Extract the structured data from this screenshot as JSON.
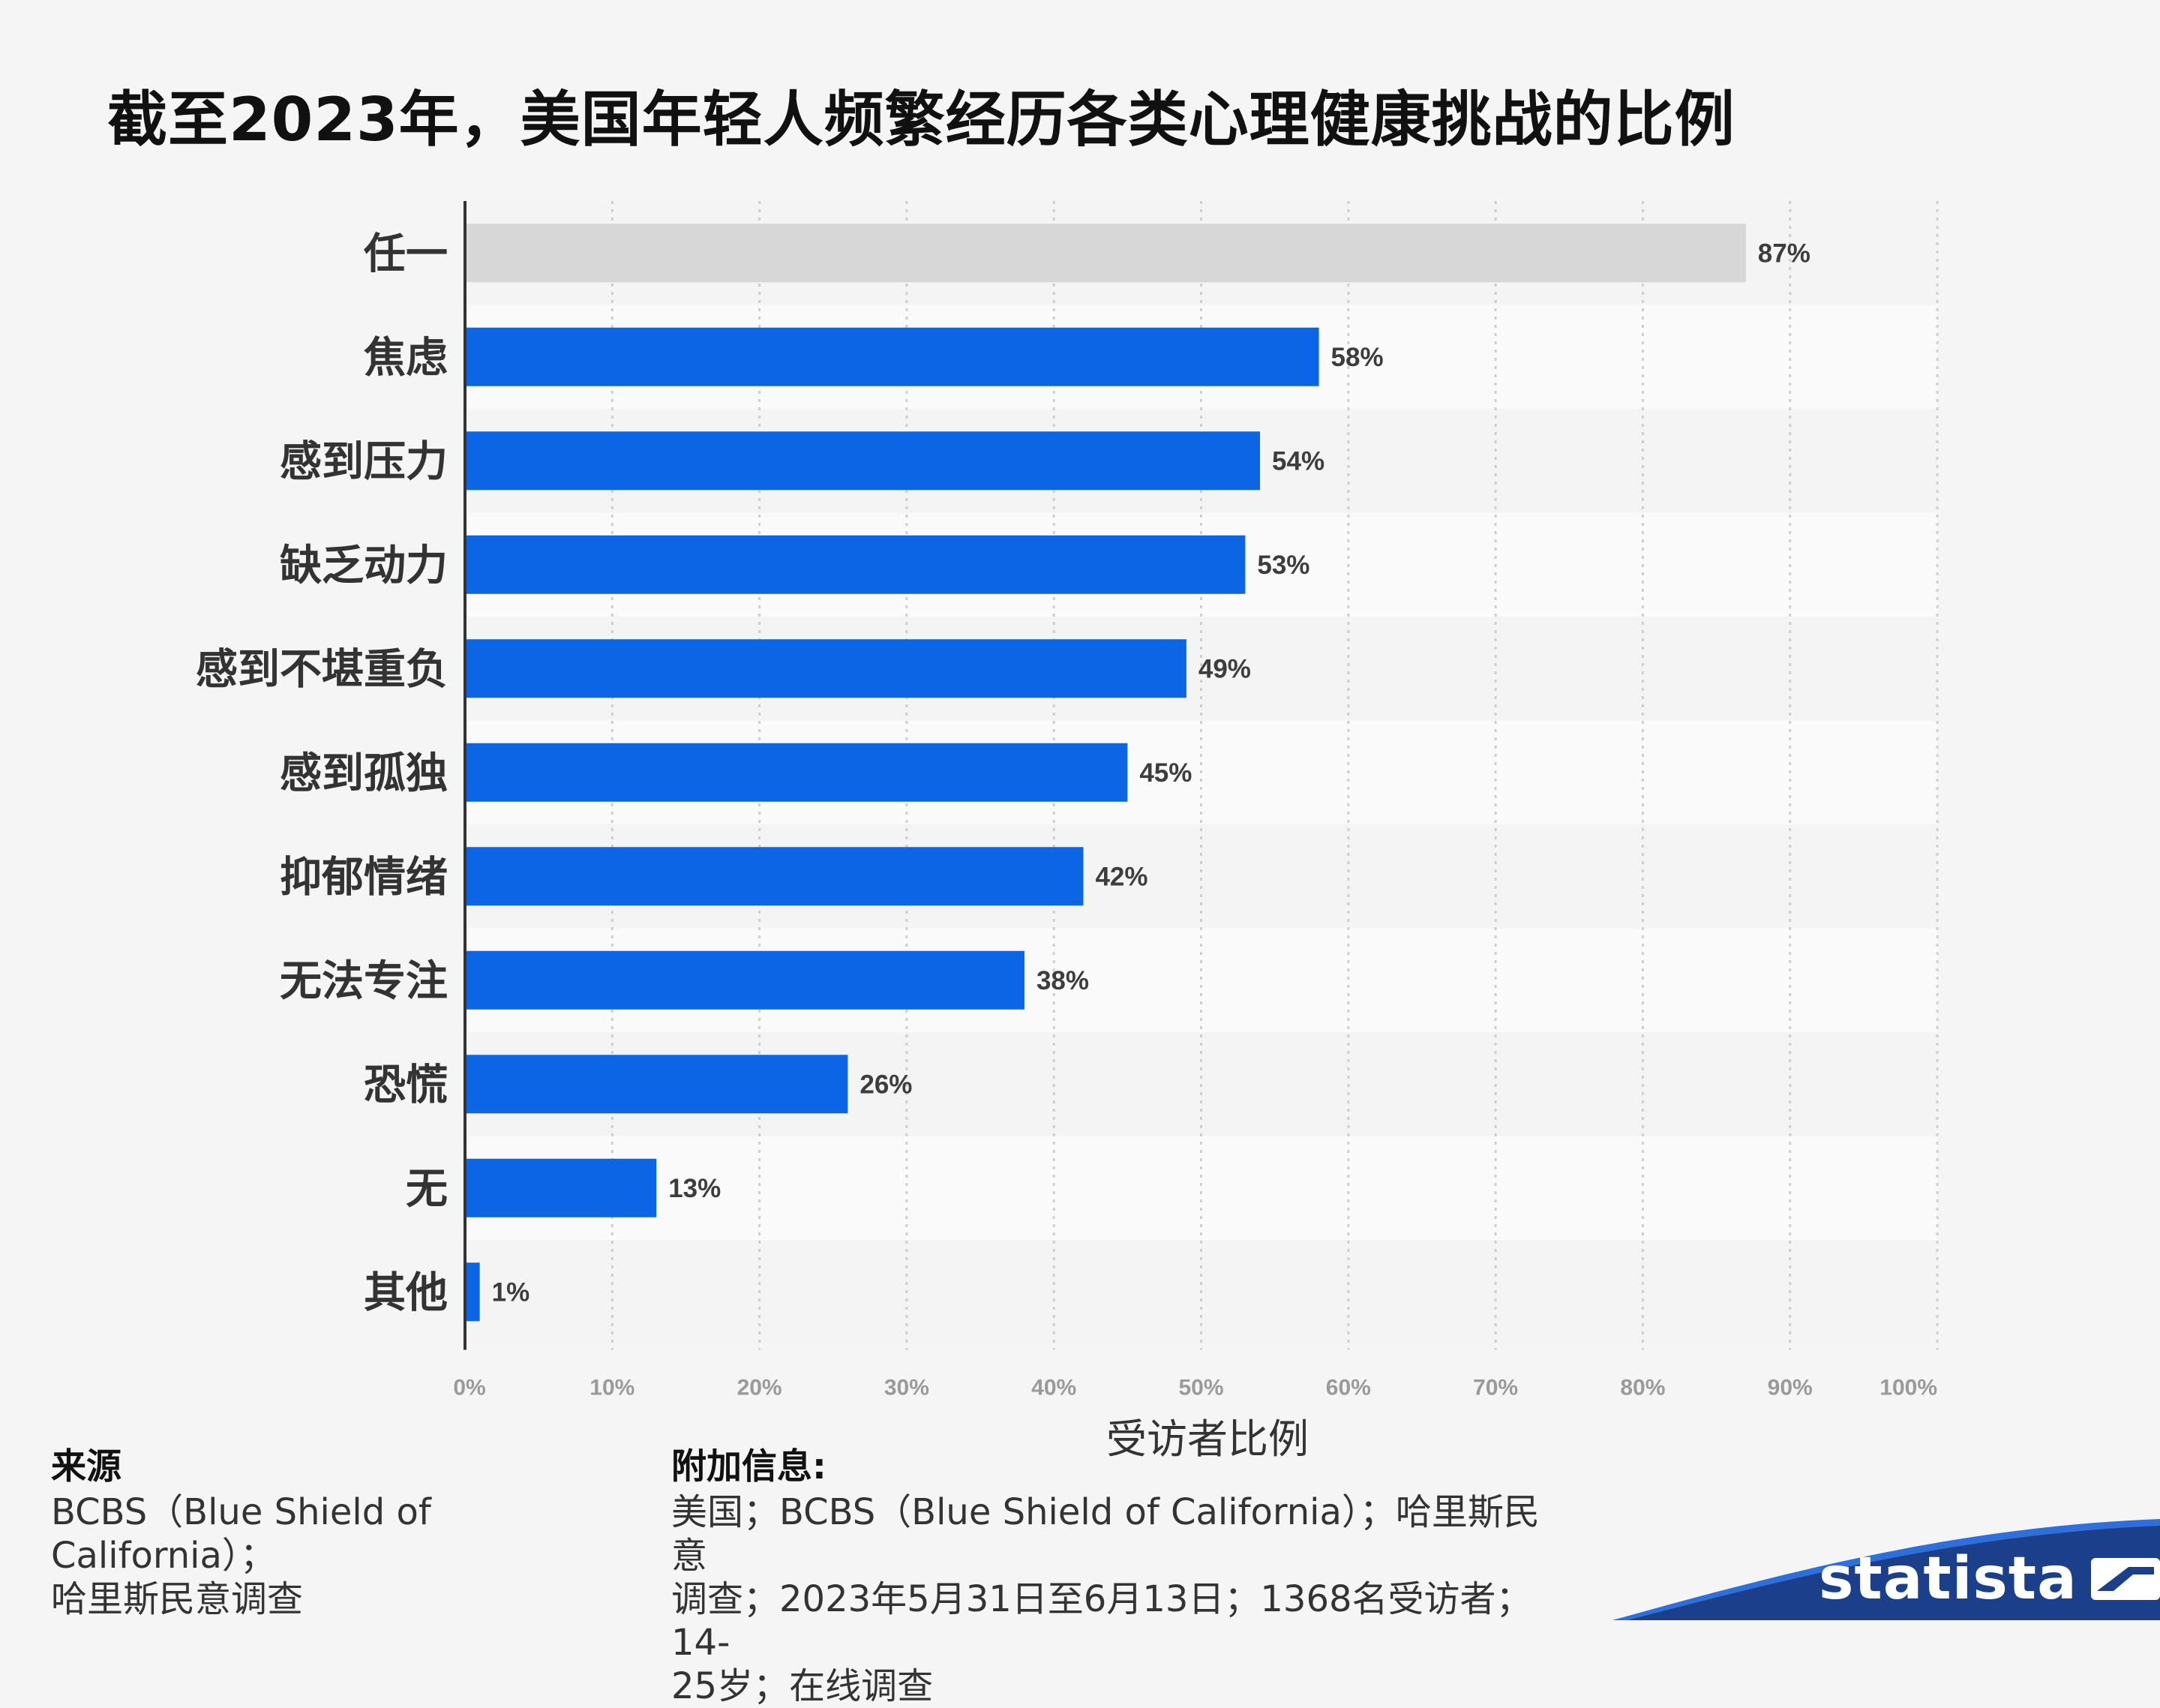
{
  "title": "截至2023年，美国年轻人频繁经历各类心理健康挑战的比例",
  "chart_data": {
    "type": "bar",
    "orientation": "horizontal",
    "title": "截至2023年，美国年轻人频繁经历各类心理健康挑战的比例",
    "xlabel": "受访者比例",
    "ylabel": "",
    "xlim": [
      0,
      100
    ],
    "x_ticks": [
      "0%",
      "10%",
      "20%",
      "30%",
      "40%",
      "50%",
      "60%",
      "70%",
      "80%",
      "90%",
      "100%"
    ],
    "categories": [
      "任一",
      "焦虑",
      "感到压力",
      "缺乏动力",
      "感到不堪重负",
      "感到孤独",
      "抑郁情绪",
      "无法专注",
      "恐慌",
      "无",
      "其他"
    ],
    "values": [
      87,
      58,
      54,
      53,
      49,
      45,
      42,
      38,
      26,
      13,
      1
    ],
    "value_labels": [
      "87%",
      "58%",
      "54%",
      "53%",
      "49%",
      "45%",
      "42%",
      "38%",
      "26%",
      "13%",
      "1%"
    ],
    "highlight_category": "任一",
    "colors": {
      "bar": "#0b65e4",
      "highlight_bar": "#d7d7d7",
      "value_label": "#3d3d3d",
      "tick_label": "#9a9a9a"
    },
    "grid": true
  },
  "source": {
    "heading": "来源",
    "lines": [
      "BCBS（Blue Shield of California）；",
      "哈里斯民意调查"
    ]
  },
  "additional_info": {
    "heading": "附加信息:",
    "lines": [
      "美国；BCBS（Blue Shield of California）；哈里斯民意",
      "调查；2023年5月31日至6月13日；1368名受访者；14-",
      "25岁；在线调查"
    ]
  },
  "brand": {
    "name": "statista",
    "color": "#1b3f8a"
  }
}
